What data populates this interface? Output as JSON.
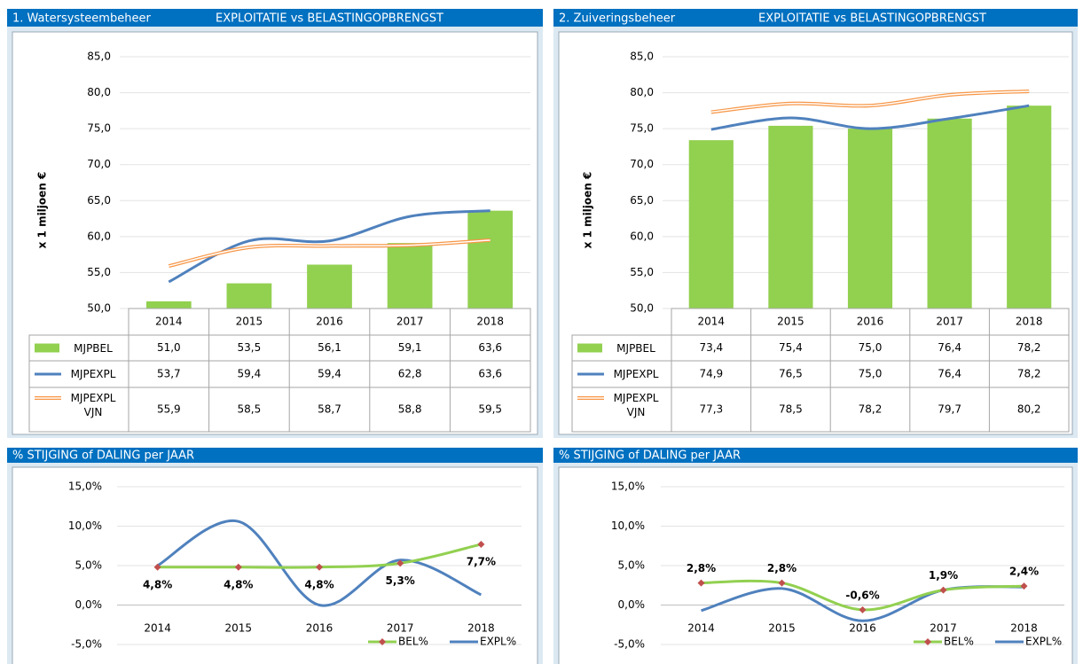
{
  "chart_data": [
    {
      "type": "bar",
      "title": "1. Watersysteembeheer",
      "subtitle": "EXPLOITATIE vs BELASTINGOPBRENGST",
      "ylabel": "x 1 miljoen €",
      "categories": [
        "2014",
        "2015",
        "2016",
        "2017",
        "2018"
      ],
      "series": [
        {
          "name": "MJPBEL",
          "kind": "bar",
          "color": "#92d050",
          "values": [
            51.0,
            53.5,
            56.1,
            59.1,
            63.6
          ],
          "value_labels": [
            "51,0",
            "53,5",
            "56,1",
            "59,1",
            "63,6"
          ]
        },
        {
          "name": "MJPEXPL",
          "kind": "line",
          "color": "#4f81bd",
          "values": [
            53.7,
            59.4,
            59.4,
            62.8,
            63.6
          ],
          "value_labels": [
            "53,7",
            "59,4",
            "59,4",
            "62,8",
            "63,6"
          ]
        },
        {
          "name": "MJPEXPL VJN",
          "kind": "line",
          "style": "double",
          "color": "#f79646",
          "values": [
            55.9,
            58.5,
            58.7,
            58.8,
            59.5
          ],
          "value_labels": [
            "55,9",
            "58,5",
            "58,7",
            "58,8",
            "59,5"
          ]
        }
      ],
      "ylim": [
        50,
        85
      ],
      "yticks": [
        {
          "value": 50,
          "label": "50,0"
        },
        {
          "value": 55,
          "label": "55,0"
        },
        {
          "value": 60,
          "label": "60,0"
        },
        {
          "value": 65,
          "label": "65,0"
        },
        {
          "value": 70,
          "label": "70,0"
        },
        {
          "value": 75,
          "label": "75,0"
        },
        {
          "value": 80,
          "label": "80,0"
        },
        {
          "value": 85,
          "label": "85,0"
        }
      ],
      "grid": true,
      "data_table": true
    },
    {
      "type": "bar",
      "title": "2. Zuiveringsbeheer",
      "subtitle": "EXPLOITATIE vs BELASTINGOPBRENGST",
      "ylabel": "x 1 miljoen €",
      "categories": [
        "2014",
        "2015",
        "2016",
        "2017",
        "2018"
      ],
      "series": [
        {
          "name": "MJPBEL",
          "kind": "bar",
          "color": "#92d050",
          "values": [
            73.4,
            75.4,
            75.0,
            76.4,
            78.2
          ],
          "value_labels": [
            "73,4",
            "75,4",
            "75,0",
            "76,4",
            "78,2"
          ]
        },
        {
          "name": "MJPEXPL",
          "kind": "line",
          "color": "#4f81bd",
          "values": [
            74.9,
            76.5,
            75.0,
            76.4,
            78.2
          ],
          "value_labels": [
            "74,9",
            "76,5",
            "75,0",
            "76,4",
            "78,2"
          ]
        },
        {
          "name": "MJPEXPL VJN",
          "kind": "line",
          "style": "double",
          "color": "#f79646",
          "values": [
            77.3,
            78.5,
            78.2,
            79.7,
            80.2
          ],
          "value_labels": [
            "77,3",
            "78,5",
            "78,2",
            "79,7",
            "80,2"
          ]
        }
      ],
      "ylim": [
        50,
        85
      ],
      "yticks": [
        {
          "value": 50,
          "label": "50,0"
        },
        {
          "value": 55,
          "label": "55,0"
        },
        {
          "value": 60,
          "label": "60,0"
        },
        {
          "value": 65,
          "label": "65,0"
        },
        {
          "value": 70,
          "label": "70,0"
        },
        {
          "value": 75,
          "label": "75,0"
        },
        {
          "value": 80,
          "label": "80,0"
        },
        {
          "value": 85,
          "label": "85,0"
        }
      ],
      "grid": true,
      "data_table": true
    },
    {
      "type": "line",
      "title": "% STIJGING of DALING per JAAR",
      "categories": [
        "2014",
        "2015",
        "2016",
        "2017",
        "2018"
      ],
      "series": [
        {
          "name": "BEL%",
          "color": "#92d050",
          "marker_color": "#c0504d",
          "values": [
            4.8,
            4.8,
            4.8,
            5.3,
            7.7
          ],
          "value_labels": [
            "4,8%",
            "4,8%",
            "4,8%",
            "5,3%",
            "7,7%"
          ],
          "label_position": "below"
        },
        {
          "name": "EXPL%",
          "color": "#4f81bd",
          "values": [
            5.0,
            10.6,
            0.0,
            5.7,
            1.3
          ]
        }
      ],
      "ylim": [
        -5,
        15
      ],
      "yticks": [
        {
          "value": -5,
          "label": "-5,0%"
        },
        {
          "value": 0,
          "label": "0,0%"
        },
        {
          "value": 5,
          "label": "5,0%"
        },
        {
          "value": 10,
          "label": "10,0%"
        },
        {
          "value": 15,
          "label": "15,0%"
        }
      ],
      "grid": true,
      "legend": "bottom-right"
    },
    {
      "type": "line",
      "title": "% STIJGING of DALING per JAAR",
      "categories": [
        "2014",
        "2015",
        "2016",
        "2017",
        "2018"
      ],
      "series": [
        {
          "name": "BEL%",
          "color": "#92d050",
          "marker_color": "#c0504d",
          "values": [
            2.8,
            2.8,
            -0.6,
            1.9,
            2.4
          ],
          "value_labels": [
            "2,8%",
            "2,8%",
            "-0,6%",
            "1,9%",
            "2,4%"
          ],
          "label_position": "above"
        },
        {
          "name": "EXPL%",
          "color": "#4f81bd",
          "values": [
            -0.7,
            2.1,
            -2.0,
            1.9,
            2.3
          ]
        }
      ],
      "ylim": [
        -5,
        15
      ],
      "yticks": [
        {
          "value": -5,
          "label": "-5,0%"
        },
        {
          "value": 0,
          "label": "0,0%"
        },
        {
          "value": 5,
          "label": "5,0%"
        },
        {
          "value": 10,
          "label": "10,0%"
        },
        {
          "value": 15,
          "label": "15,0%"
        }
      ],
      "grid": true,
      "legend": "bottom-right"
    }
  ]
}
